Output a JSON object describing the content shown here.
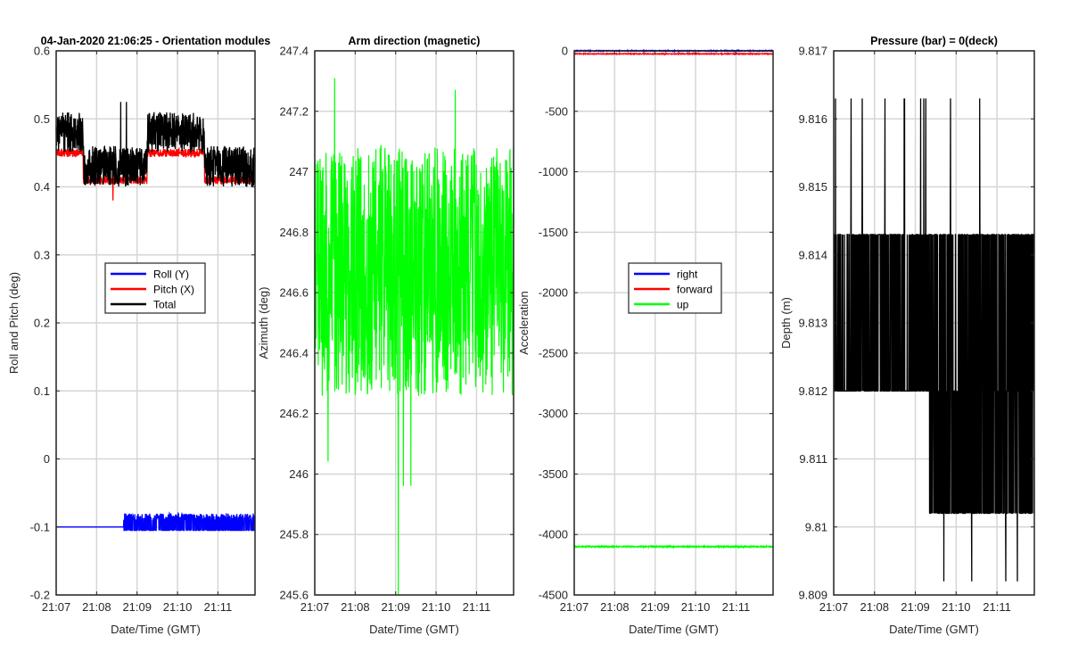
{
  "chart_data": [
    {
      "type": "line",
      "title": "04-Jan-2020 21:06:25 - Orientation modules",
      "xlabel": "Date/Time (GMT)",
      "ylabel": "Roll and Pitch (deg)",
      "xlim": [
        "21:07",
        "21:11:55"
      ],
      "ylim": [
        -0.2,
        0.6
      ],
      "xticks": [
        "21:07",
        "21:08",
        "21:09",
        "21:10",
        "21:11"
      ],
      "yticks": [
        -0.2,
        -0.1,
        0,
        0.1,
        0.2,
        0.3,
        0.4,
        0.5,
        0.6
      ],
      "ytick_labels": [
        "-0.2",
        "-0.1",
        "0",
        "0.1",
        "0.2",
        "0.3",
        "0.4",
        "0.5",
        "0.6"
      ],
      "grid": true,
      "legend_position": "center",
      "series": [
        {
          "name": "Roll (Y)",
          "color": "#0000ff",
          "x_range": [
            "21:07",
            "21:11:55"
          ],
          "levels": [
            -0.105,
            -0.08
          ],
          "segments": [
            {
              "x": [
                "21:07",
                "21:08:40"
              ],
              "base": -0.1
            },
            {
              "x": [
                "21:08:40",
                "21:11:55"
              ],
              "base": -0.09
            }
          ],
          "spikes_max": -0.04,
          "spikes_min": -0.105
        },
        {
          "name": "Pitch (X)",
          "color": "#ff0000",
          "x_range": [
            "21:07",
            "21:11:55"
          ],
          "segments": [
            {
              "x": [
                "21:07",
                "21:07:40"
              ],
              "base": 0.45
            },
            {
              "x": [
                "21:07:40",
                "21:09:15"
              ],
              "base": 0.41
            },
            {
              "x": [
                "21:09:15",
                "21:10:40"
              ],
              "base": 0.45
            },
            {
              "x": [
                "21:10:40",
                "21:11:55"
              ],
              "base": 0.41
            }
          ],
          "spikes_min": 0.38
        },
        {
          "name": "Total",
          "color": "#000000",
          "x_range": [
            "21:07",
            "21:11:55"
          ],
          "segments": [
            {
              "x": [
                "21:07",
                "21:07:40"
              ],
              "base": 0.48
            },
            {
              "x": [
                "21:07:40",
                "21:09:15"
              ],
              "base": 0.43
            },
            {
              "x": [
                "21:09:15",
                "21:10:40"
              ],
              "base": 0.48
            },
            {
              "x": [
                "21:10:40",
                "21:11:55"
              ],
              "base": 0.43
            }
          ],
          "spikes_max": 0.525
        }
      ]
    },
    {
      "type": "line",
      "title": "Arm direction (magnetic)",
      "xlabel": "Date/Time (GMT)",
      "ylabel": "Azimuth (deg)",
      "xlim": [
        "21:07",
        "21:11:55"
      ],
      "ylim": [
        245.6,
        247.4
      ],
      "xticks": [
        "21:07",
        "21:08",
        "21:09",
        "21:10",
        "21:11"
      ],
      "yticks": [
        245.6,
        245.8,
        246,
        246.2,
        246.4,
        246.6,
        246.8,
        247,
        247.2,
        247.4
      ],
      "ytick_labels": [
        "245.6",
        "245.8",
        "246",
        "246.2",
        "246.4",
        "246.6",
        "246.8",
        "247",
        "247.2",
        "247.4"
      ],
      "grid": true,
      "series": [
        {
          "color": "#00ff00",
          "x_range": [
            "21:07",
            "21:11:55"
          ],
          "mean": 246.67,
          "min": 245.6,
          "max": 247.31,
          "band": [
            246.3,
            247.05
          ]
        }
      ]
    },
    {
      "type": "line",
      "title": "",
      "xlabel": "Date/Time (GMT)",
      "ylabel": "Acceleration",
      "xlim": [
        "21:07",
        "21:11:55"
      ],
      "ylim": [
        -4500,
        0
      ],
      "xticks": [
        "21:07",
        "21:08",
        "21:09",
        "21:10",
        "21:11"
      ],
      "yticks": [
        -4500,
        -4000,
        -3500,
        -3000,
        -2500,
        -2000,
        -1500,
        -1000,
        -500,
        0
      ],
      "ytick_labels": [
        "-4500",
        "-4000",
        "-3500",
        "-3000",
        "-2500",
        "-2000",
        "-1500",
        "-1000",
        "-500",
        "0"
      ],
      "grid": true,
      "legend_position": "center",
      "series": [
        {
          "name": "right",
          "color": "#0000ff",
          "x_range": [
            "21:07",
            "21:11:55"
          ],
          "mean": 0
        },
        {
          "name": "forward",
          "color": "#ff0000",
          "x_range": [
            "21:07",
            "21:11:55"
          ],
          "mean": -25
        },
        {
          "name": "up",
          "color": "#00ff00",
          "x_range": [
            "21:07",
            "21:11:55"
          ],
          "mean": -4100
        }
      ]
    },
    {
      "type": "line",
      "title": "Pressure (bar) = 0(deck)",
      "xlabel": "Date/Time (GMT)",
      "ylabel": "Depth (m)",
      "xlim": [
        "21:07",
        "21:11:55"
      ],
      "ylim": [
        9.809,
        9.817
      ],
      "xticks": [
        "21:07",
        "21:08",
        "21:09",
        "21:10",
        "21:11"
      ],
      "yticks": [
        9.809,
        9.81,
        9.811,
        9.812,
        9.813,
        9.814,
        9.815,
        9.816,
        9.817
      ],
      "ytick_labels": [
        "9.809",
        "9.81",
        "9.811",
        "9.812",
        "9.813",
        "9.814",
        "9.815",
        "9.816",
        "9.817"
      ],
      "grid": true,
      "series": [
        {
          "color": "#000000",
          "x_range": [
            "21:07",
            "21:11:55"
          ],
          "levels": [
            9.8102,
            9.812,
            9.8143
          ],
          "segments": [
            {
              "x": [
                "21:07",
                "21:09:20"
              ],
              "band": [
                9.812,
                9.8143
              ]
            },
            {
              "x": [
                "21:09:20",
                "21:11:55"
              ],
              "band": [
                9.8102,
                9.8143
              ]
            }
          ],
          "spikes_max": 9.8163,
          "spikes_min": 9.8092
        }
      ]
    }
  ]
}
